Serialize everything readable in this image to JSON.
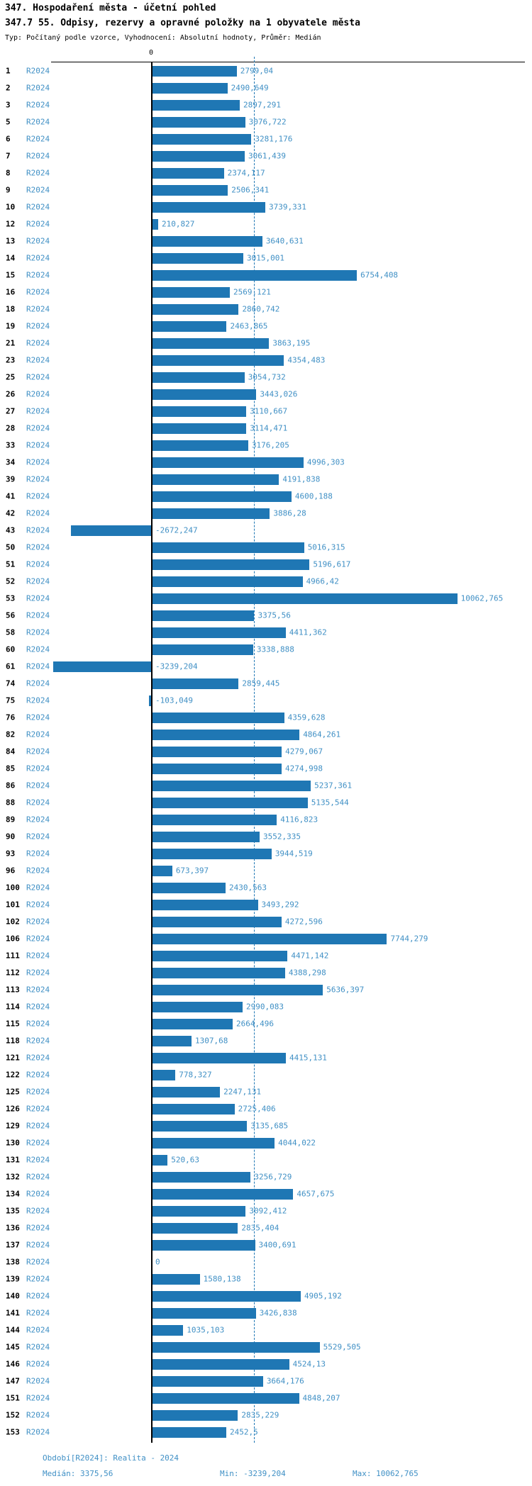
{
  "header": {
    "title": "347. Hospodaření města - účetní pohled",
    "subtitle": "347.7 55. Odpisy, rezervy a opravné položky na 1 obyvatele města",
    "meta": "Typ: Počítaný podle vzorce, Vyhodnocení: Absolutní hodnoty, Průměr: Medián"
  },
  "axis": {
    "zero_label": "0"
  },
  "footer": {
    "period": "Období[R2024]: Realita - 2024",
    "median": "Medián: 3375,56",
    "min": "Min: -3239,204",
    "max": "Max: 10062,765"
  },
  "colors": {
    "bar": "#1f77b4",
    "text_blue": "#4090c5",
    "axis": "#000000"
  },
  "chart_data": {
    "type": "bar",
    "orientation": "horizontal",
    "series_label": "R2024",
    "title": "347.7 55. Odpisy, rezervy a opravné položky na 1 obyvatele města",
    "legend_position": "none",
    "grid": "median-dashed-vertical",
    "xlim": [
      -3400,
      12400
    ],
    "categories": [
      "1",
      "2",
      "3",
      "5",
      "6",
      "7",
      "8",
      "9",
      "10",
      "12",
      "13",
      "14",
      "15",
      "16",
      "18",
      "19",
      "21",
      "23",
      "25",
      "26",
      "27",
      "28",
      "33",
      "34",
      "39",
      "41",
      "42",
      "43",
      "50",
      "51",
      "52",
      "53",
      "56",
      "58",
      "60",
      "61",
      "74",
      "75",
      "76",
      "82",
      "84",
      "85",
      "86",
      "88",
      "89",
      "90",
      "93",
      "96",
      "100",
      "101",
      "102",
      "106",
      "111",
      "112",
      "113",
      "114",
      "115",
      "118",
      "121",
      "122",
      "125",
      "126",
      "129",
      "130",
      "131",
      "132",
      "134",
      "135",
      "136",
      "137",
      "138",
      "139",
      "140",
      "141",
      "144",
      "145",
      "146",
      "147",
      "151",
      "152",
      "153"
    ],
    "values": [
      2799.04,
      2490.649,
      2897.291,
      3076.722,
      3281.176,
      3061.439,
      2374.117,
      2506.341,
      3739.331,
      210.827,
      3640.631,
      3015.001,
      6754.408,
      2569.121,
      2860.742,
      2463.865,
      3863.195,
      4354.483,
      3054.732,
      3443.026,
      3110.667,
      3114.471,
      3176.205,
      4996.303,
      4191.838,
      4600.188,
      3886.28,
      -2672.247,
      5016.315,
      5196.617,
      4966.42,
      10062.765,
      3375.56,
      4411.362,
      3338.888,
      -3239.204,
      2859.445,
      -103.049,
      4359.628,
      4864.261,
      4279.067,
      4274.998,
      5237.361,
      5135.544,
      4116.823,
      3552.335,
      3944.519,
      673.397,
      2430.563,
      3493.292,
      4272.596,
      7744.279,
      4471.142,
      4388.298,
      5636.397,
      2990.083,
      2664.496,
      1307.68,
      4415.131,
      778.327,
      2247.131,
      2725.406,
      3135.685,
      4044.022,
      520.63,
      3256.729,
      4657.675,
      3092.412,
      2835.404,
      3400.691,
      0,
      1580.138,
      4905.192,
      3426.838,
      1035.103,
      5529.505,
      4524.13,
      3664.176,
      4848.207,
      2835.229,
      2452.5
    ],
    "value_labels": [
      "2799,04",
      "2490,649",
      "2897,291",
      "3076,722",
      "3281,176",
      "3061,439",
      "2374,117",
      "2506,341",
      "3739,331",
      "210,827",
      "3640,631",
      "3015,001",
      "6754,408",
      "2569,121",
      "2860,742",
      "2463,865",
      "3863,195",
      "4354,483",
      "3054,732",
      "3443,026",
      "3110,667",
      "3114,471",
      "3176,205",
      "4996,303",
      "4191,838",
      "4600,188",
      "3886,28",
      "-2672,247",
      "5016,315",
      "5196,617",
      "4966,42",
      "10062,765",
      "3375,56",
      "4411,362",
      "3338,888",
      "-3239,204",
      "2859,445",
      "-103,049",
      "4359,628",
      "4864,261",
      "4279,067",
      "4274,998",
      "5237,361",
      "5135,544",
      "4116,823",
      "3552,335",
      "3944,519",
      "673,397",
      "2430,563",
      "3493,292",
      "4272,596",
      "7744,279",
      "4471,142",
      "4388,298",
      "5636,397",
      "2990,083",
      "2664,496",
      "1307,68",
      "4415,131",
      "778,327",
      "2247,131",
      "2725,406",
      "3135,685",
      "4044,022",
      "520,63",
      "3256,729",
      "4657,675",
      "3092,412",
      "2835,404",
      "3400,691",
      "0",
      "1580,138",
      "4905,192",
      "3426,838",
      "1035,103",
      "5529,505",
      "4524,13",
      "3664,176",
      "4848,207",
      "2835,229",
      "2452,5"
    ],
    "stats": {
      "median": 3375.56,
      "min": -3239.204,
      "max": 10062.765
    }
  }
}
